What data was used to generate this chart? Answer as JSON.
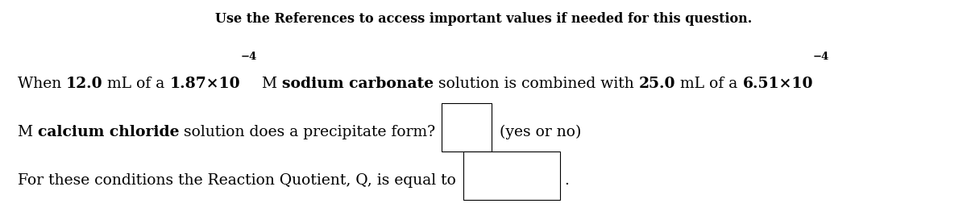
{
  "background_color": "#ffffff",
  "text_color": "#000000",
  "box_border_color": "#000000",
  "header": "Use the References to access important values if needed for this question.",
  "header_fontsize": 11.5,
  "body_fontsize": 13.5,
  "sup_fontsize": 9.5,
  "line1": [
    {
      "t": "When ",
      "b": false,
      "sup": false
    },
    {
      "t": "12.0",
      "b": true,
      "sup": false
    },
    {
      "t": " mL of a ",
      "b": false,
      "sup": false
    },
    {
      "t": "1.87×10",
      "b": true,
      "sup": false
    },
    {
      "t": "−4",
      "b": true,
      "sup": true
    },
    {
      "t": " M ",
      "b": false,
      "sup": false
    },
    {
      "t": "sodium carbonate",
      "b": true,
      "sup": false
    },
    {
      "t": " solution is combined with ",
      "b": false,
      "sup": false
    },
    {
      "t": "25.0",
      "b": true,
      "sup": false
    },
    {
      "t": " mL of a ",
      "b": false,
      "sup": false
    },
    {
      "t": "6.51×10",
      "b": true,
      "sup": false
    },
    {
      "t": "−4",
      "b": true,
      "sup": true
    }
  ],
  "line2": [
    {
      "t": "M ",
      "b": false,
      "sup": false
    },
    {
      "t": "calcium chloride",
      "b": true,
      "sup": false
    },
    {
      "t": " solution does a precipitate form?",
      "b": false,
      "sup": false
    }
  ],
  "line3": [
    {
      "t": "For these conditions the Reaction Quotient, Q, is equal to",
      "b": false,
      "sup": false
    }
  ],
  "figsize": [
    12.0,
    2.73
  ],
  "dpi": 100
}
